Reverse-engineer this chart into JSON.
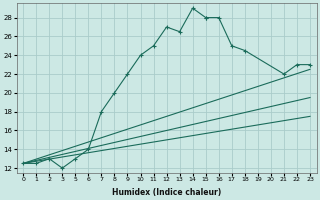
{
  "xlabel": "Humidex (Indice chaleur)",
  "ylabel": "",
  "bg_color": "#cce8e4",
  "grid_color": "#aaccca",
  "line_color": "#1a6b5a",
  "xlim": [
    -0.5,
    23.5
  ],
  "ylim": [
    11.5,
    29.5
  ],
  "xticks": [
    0,
    1,
    2,
    3,
    5,
    6,
    7,
    8,
    9,
    10,
    11,
    12,
    13,
    14,
    15,
    16,
    17,
    18,
    19,
    20,
    21,
    22,
    23
  ],
  "yticks": [
    12,
    14,
    16,
    18,
    20,
    22,
    24,
    26,
    28
  ],
  "series": [
    {
      "x": [
        0,
        1,
        2,
        3,
        5,
        6,
        7,
        8,
        9,
        10,
        11,
        12,
        13,
        14,
        15,
        15,
        16,
        17,
        18,
        21,
        22,
        23
      ],
      "y": [
        12.5,
        12.5,
        13,
        12,
        13,
        14,
        18,
        20,
        22,
        24,
        25,
        27,
        26.5,
        29,
        28,
        28,
        28,
        25,
        24.5,
        22,
        23,
        23
      ],
      "marker": true
    },
    {
      "x": [
        0,
        23
      ],
      "y": [
        12.5,
        22.5
      ],
      "marker": false
    },
    {
      "x": [
        0,
        23
      ],
      "y": [
        12.5,
        19.5
      ],
      "marker": false
    },
    {
      "x": [
        0,
        23
      ],
      "y": [
        12.5,
        17.5
      ],
      "marker": false
    }
  ]
}
